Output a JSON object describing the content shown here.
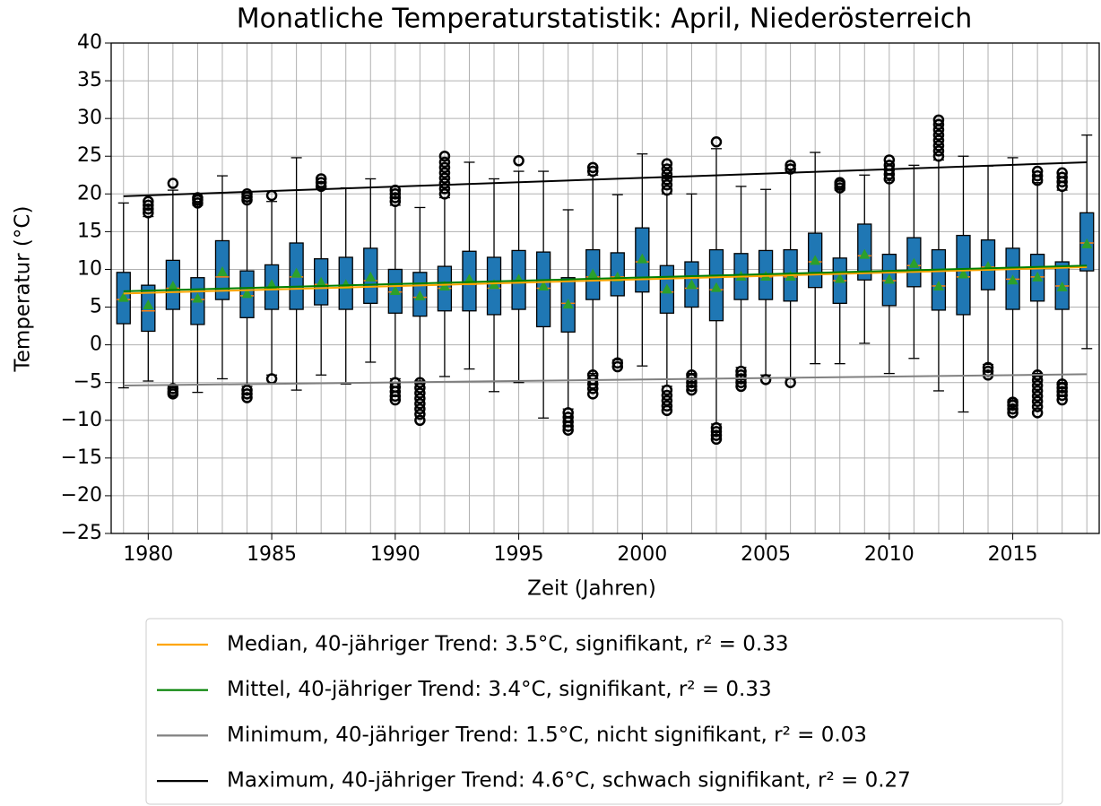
{
  "chart_data": {
    "type": "box",
    "title": "Monatliche Temperaturstatistik: April, Niederösterreich",
    "xlabel": "Zeit (Jahren)",
    "ylabel": "Temperatur (°C)",
    "xlim": [
      1978.5,
      2018.5
    ],
    "ylim": [
      -25,
      40
    ],
    "xticks": [
      1980,
      1985,
      1990,
      1995,
      2000,
      2005,
      2010,
      2015
    ],
    "yticks": [
      {
        "value": -25,
        "label": "−25"
      },
      {
        "value": -20,
        "label": "−20"
      },
      {
        "value": -15,
        "label": "−15"
      },
      {
        "value": -10,
        "label": "−10"
      },
      {
        "value": -5,
        "label": "−5"
      },
      0,
      5,
      10,
      15,
      20,
      25,
      30,
      35,
      40
    ],
    "grid": true,
    "box_color": "#1f77b4",
    "median_color": "#ff7f0e",
    "mean_color": "#2ca02c",
    "boxes": [
      {
        "x": 1979,
        "whislo": -5.7,
        "q1": 2.8,
        "med": 6,
        "q3": 9.6,
        "whishi": 18.8,
        "mean": 6.3,
        "fliers": []
      },
      {
        "x": 1980,
        "whislo": -4.8,
        "q1": 1.8,
        "med": 4.5,
        "q3": 7.9,
        "whishi": 17,
        "mean": 5.3,
        "fliers": [
          17.5,
          18,
          18.5,
          19
        ]
      },
      {
        "x": 1981,
        "whislo": -5.5,
        "q1": 4.7,
        "med": 7.5,
        "q3": 11.2,
        "whishi": 20.5,
        "mean": 7.8,
        "fliers": [
          -5.8,
          -6.2,
          -6.5,
          21.4
        ]
      },
      {
        "x": 1982,
        "whislo": -6.3,
        "q1": 2.7,
        "med": 6,
        "q3": 8.9,
        "whishi": 18.5,
        "mean": 6.2,
        "fliers": [
          18.8,
          19.2,
          19.5
        ]
      },
      {
        "x": 1983,
        "whislo": -4.5,
        "q1": 6,
        "med": 9,
        "q3": 13.8,
        "whishi": 22.4,
        "mean": 9.7,
        "fliers": []
      },
      {
        "x": 1984,
        "whislo": -5.5,
        "q1": 3.6,
        "med": 6.5,
        "q3": 9.8,
        "whishi": 19,
        "mean": 6.8,
        "fliers": [
          -6,
          -6.5,
          -7,
          19.2,
          19.6,
          20
        ]
      },
      {
        "x": 1985,
        "whislo": -4,
        "q1": 4.7,
        "med": 7.5,
        "q3": 10.6,
        "whishi": 19,
        "mean": 8,
        "fliers": [
          -4.5,
          19.8
        ]
      },
      {
        "x": 1986,
        "whislo": -6,
        "q1": 4.7,
        "med": 9,
        "q3": 13.5,
        "whishi": 24.8,
        "mean": 9.5,
        "fliers": []
      },
      {
        "x": 1987,
        "whislo": -4,
        "q1": 5.3,
        "med": 8,
        "q3": 11.4,
        "whishi": 20.8,
        "mean": 8.3,
        "fliers": [
          21,
          21.5,
          22
        ]
      },
      {
        "x": 1988,
        "whislo": -5.2,
        "q1": 4.7,
        "med": 7.8,
        "q3": 11.6,
        "whishi": 20.8,
        "mean": 8,
        "fliers": []
      },
      {
        "x": 1989,
        "whislo": -2.3,
        "q1": 5.5,
        "med": 8.5,
        "q3": 12.8,
        "whishi": 22,
        "mean": 9,
        "fliers": []
      },
      {
        "x": 1990,
        "whislo": -4.5,
        "q1": 4.2,
        "med": 7,
        "q3": 10,
        "whishi": 18.5,
        "mean": 7.2,
        "fliers": [
          -5,
          -5.6,
          -6.2,
          -6.8,
          -7.3,
          19,
          19.5,
          20,
          20.5
        ]
      },
      {
        "x": 1991,
        "whislo": -4.8,
        "q1": 3.8,
        "med": 6.3,
        "q3": 9.6,
        "whishi": 18.2,
        "mean": 6.5,
        "fliers": [
          -5,
          -5.7,
          -6.4,
          -7.1,
          -7.8,
          -8.5,
          -9.2,
          -10
        ]
      },
      {
        "x": 1992,
        "whislo": -4.2,
        "q1": 4.5,
        "med": 7.5,
        "q3": 10.4,
        "whishi": 19.5,
        "mean": 7.8,
        "fliers": [
          20,
          20.7,
          21.4,
          22.1,
          22.8,
          23.5,
          24.2,
          25
        ]
      },
      {
        "x": 1993,
        "whislo": -3.2,
        "q1": 4.5,
        "med": 8,
        "q3": 12.4,
        "whishi": 24.2,
        "mean": 8.7,
        "fliers": []
      },
      {
        "x": 1994,
        "whislo": -6.2,
        "q1": 4,
        "med": 7.5,
        "q3": 11.6,
        "whishi": 22,
        "mean": 8,
        "fliers": []
      },
      {
        "x": 1995,
        "whislo": -5,
        "q1": 4.7,
        "med": 8.5,
        "q3": 12.5,
        "whishi": 23,
        "mean": 8.7,
        "fliers": [
          24.4
        ]
      },
      {
        "x": 1996,
        "whislo": -9.7,
        "q1": 2.4,
        "med": 7.5,
        "q3": 12.3,
        "whishi": 23,
        "mean": 7.8,
        "fliers": []
      },
      {
        "x": 1997,
        "whislo": -8.5,
        "q1": 1.7,
        "med": 5.5,
        "q3": 8.9,
        "whishi": 17.9,
        "mean": 5.4,
        "fliers": [
          -9,
          -9.6,
          -10.2,
          -10.8,
          -11.3
        ]
      },
      {
        "x": 1998,
        "whislo": -3.8,
        "q1": 6,
        "med": 9,
        "q3": 12.6,
        "whishi": 22.5,
        "mean": 9.4,
        "fliers": [
          -4,
          -4.6,
          -5.2,
          -5.8,
          -6.5,
          23,
          23.5
        ]
      },
      {
        "x": 1999,
        "whislo": -2,
        "q1": 6.5,
        "med": 9,
        "q3": 12.2,
        "whishi": 19.9,
        "mean": 9,
        "fliers": [
          -2.4,
          -2.9
        ]
      },
      {
        "x": 2000,
        "whislo": -2.8,
        "q1": 7,
        "med": 11,
        "q3": 15.5,
        "whishi": 25.3,
        "mean": 11.4,
        "fliers": []
      },
      {
        "x": 2001,
        "whislo": -5.5,
        "q1": 4.2,
        "med": 7,
        "q3": 10.5,
        "whishi": 20,
        "mean": 7.4,
        "fliers": [
          -6,
          -6.7,
          -7.4,
          -8.1,
          -8.7,
          20.5,
          21.2,
          21.9,
          22.6,
          23.3,
          24
        ]
      },
      {
        "x": 2002,
        "whislo": -3.8,
        "q1": 5,
        "med": 7.5,
        "q3": 11,
        "whishi": 20,
        "mean": 8,
        "fliers": [
          -4,
          -4.5,
          -5,
          -5.5,
          -6
        ]
      },
      {
        "x": 2003,
        "whislo": -10.5,
        "q1": 3.2,
        "med": 7.3,
        "q3": 12.6,
        "whishi": 26,
        "mean": 7.6,
        "fliers": [
          -11,
          -11.5,
          -12,
          -12.5,
          26.9
        ]
      },
      {
        "x": 2004,
        "whislo": -3,
        "q1": 6,
        "med": 9,
        "q3": 12.1,
        "whishi": 21,
        "mean": 9.1,
        "fliers": [
          -3.5,
          -4,
          -4.5,
          -5,
          -5.5
        ]
      },
      {
        "x": 2005,
        "whislo": -4,
        "q1": 6,
        "med": 9,
        "q3": 12.5,
        "whishi": 20.6,
        "mean": 9.1,
        "fliers": [
          -4.6
        ]
      },
      {
        "x": 2006,
        "whislo": -4.5,
        "q1": 5.8,
        "med": 9,
        "q3": 12.6,
        "whishi": 23,
        "mean": 9.1,
        "fliers": [
          -5,
          23.3,
          23.8
        ]
      },
      {
        "x": 2007,
        "whislo": -2.5,
        "q1": 7.6,
        "med": 11,
        "q3": 14.8,
        "whishi": 25.5,
        "mean": 11.2,
        "fliers": []
      },
      {
        "x": 2008,
        "whislo": -2.5,
        "q1": 5.5,
        "med": 8.5,
        "q3": 11.5,
        "whishi": 20.5,
        "mean": 8.8,
        "fliers": [
          20.8,
          21.2,
          21.5
        ]
      },
      {
        "x": 2009,
        "whislo": 0.2,
        "q1": 8.6,
        "med": 11.8,
        "q3": 16,
        "whishi": 22.5,
        "mean": 12,
        "fliers": []
      },
      {
        "x": 2010,
        "whislo": -3.8,
        "q1": 5.2,
        "med": 8.5,
        "q3": 12,
        "whishi": 21.8,
        "mean": 8.7,
        "fliers": [
          22,
          22.6,
          23.2,
          23.8,
          24.5
        ]
      },
      {
        "x": 2011,
        "whislo": -1.8,
        "q1": 7.7,
        "med": 10.5,
        "q3": 14.2,
        "whishi": 23.8,
        "mean": 10.8,
        "fliers": []
      },
      {
        "x": 2012,
        "whislo": -6.1,
        "q1": 4.6,
        "med": 7.8,
        "q3": 12.6,
        "whishi": 24.5,
        "mean": 7.8,
        "fliers": [
          25,
          25.7,
          26.4,
          27.1,
          27.8,
          28.5,
          29.2,
          29.8
        ]
      },
      {
        "x": 2013,
        "whislo": -8.9,
        "q1": 4,
        "med": 9,
        "q3": 14.5,
        "whishi": 25,
        "mean": 9.4,
        "fliers": []
      },
      {
        "x": 2014,
        "whislo": -2.6,
        "q1": 7.3,
        "med": 10.3,
        "q3": 13.9,
        "whishi": 23.7,
        "mean": 10.4,
        "fliers": [
          -3,
          -3.5,
          -4
        ]
      },
      {
        "x": 2015,
        "whislo": -7.3,
        "q1": 4.7,
        "med": 8.7,
        "q3": 12.8,
        "whishi": 24.8,
        "mean": 8.6,
        "fliers": [
          -7.6,
          -8,
          -8.5,
          -9
        ]
      },
      {
        "x": 2016,
        "whislo": -3.8,
        "q1": 5.8,
        "med": 9,
        "q3": 12,
        "whishi": 21.5,
        "mean": 9,
        "fliers": [
          -4,
          -4.7,
          -5.4,
          -6.1,
          -6.8,
          -7.5,
          -8.2,
          -9,
          21.8,
          22.4,
          23
        ]
      },
      {
        "x": 2017,
        "whislo": -5,
        "q1": 4.7,
        "med": 7.8,
        "q3": 11,
        "whishi": 20.5,
        "mean": 7.7,
        "fliers": [
          -5.2,
          -5.7,
          -6.2,
          -6.7,
          -7.3,
          21,
          21.6,
          22.2,
          22.8
        ]
      },
      {
        "x": 2018,
        "whislo": -0.5,
        "q1": 9.8,
        "med": 13.5,
        "q3": 17.5,
        "whishi": 27.8,
        "mean": 13.4,
        "fliers": []
      }
    ],
    "series": [
      {
        "name": "Median, 40-jähriger Trend: 3.5°C, signifikant, r² = 0.33",
        "color": "#ffa500",
        "x": [
          1979,
          2018
        ],
        "values": [
          6.8,
          10.3
        ]
      },
      {
        "name": "Mittel, 40-jähriger Trend: 3.4°C, signifikant, r² = 0.33",
        "color": "#008000",
        "x": [
          1979,
          2018
        ],
        "values": [
          7.1,
          10.5
        ]
      },
      {
        "name": "Minimum, 40-jähriger Trend: 1.5°C, nicht signifikant, r² = 0.03",
        "color": "#808080",
        "x": [
          1979,
          2018
        ],
        "values": [
          -5.4,
          -3.9
        ]
      },
      {
        "name": "Maximum, 40-jähriger Trend: 4.6°C, schwach signifikant, r² = 0.27",
        "color": "#000000",
        "x": [
          1979,
          2018
        ],
        "values": [
          19.7,
          24.2
        ]
      }
    ]
  }
}
